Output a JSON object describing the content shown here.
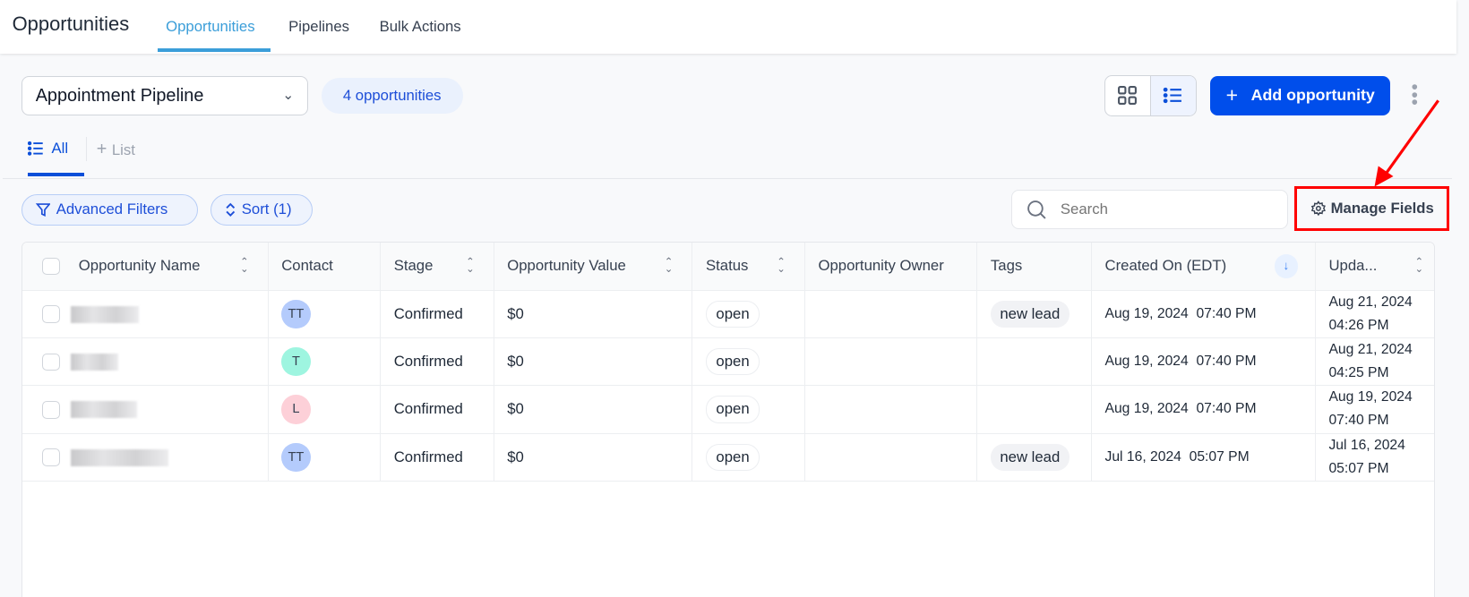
{
  "header": {
    "title": "Opportunities",
    "tabs": [
      {
        "label": "Opportunities",
        "active": true
      },
      {
        "label": "Pipelines"
      },
      {
        "label": "Bulk Actions"
      }
    ]
  },
  "toolbar": {
    "pipeline": "Appointment Pipeline",
    "count": "4 opportunities",
    "add_label": "Add opportunity",
    "view": "list"
  },
  "views": {
    "all": "All",
    "add_list": "List"
  },
  "filters": {
    "advanced": "Advanced Filters",
    "sort": "Sort (1)",
    "search_placeholder": "Search",
    "manage_fields": "Manage Fields"
  },
  "colors": {
    "accent": "#004eeb",
    "highlight_box": "#ff0000",
    "header_tab": "#3b9ed9"
  },
  "table": {
    "columns": [
      "Opportunity Name",
      "Contact",
      "Stage",
      "Opportunity Value",
      "Status",
      "Opportunity Owner",
      "Tags",
      "Created On (EDT)",
      "Upda..."
    ],
    "rows": [
      {
        "contact": "TT",
        "contact_color": "#b4cbfc",
        "stage": "Confirmed",
        "value": "$0",
        "status": "open",
        "owner": "",
        "tag": "new lead",
        "created": "Aug 19, 2024  07:40 PM",
        "updated_date": "Aug 21, 2024",
        "updated_time": "04:26 PM"
      },
      {
        "contact": "T",
        "contact_color": "#9ef5e0",
        "stage": "Confirmed",
        "value": "$0",
        "status": "open",
        "owner": "",
        "tag": "",
        "created": "Aug 19, 2024  07:40 PM",
        "updated_date": "Aug 21, 2024",
        "updated_time": "04:25 PM"
      },
      {
        "contact": "L",
        "contact_color": "#fdd0d8",
        "stage": "Confirmed",
        "value": "$0",
        "status": "open",
        "owner": "",
        "tag": "",
        "created": "Aug 19, 2024  07:40 PM",
        "updated_date": "Aug 19, 2024",
        "updated_time": "07:40 PM"
      },
      {
        "contact": "TT",
        "contact_color": "#b4cbfc",
        "stage": "Confirmed",
        "value": "$0",
        "status": "open",
        "owner": "",
        "tag": "new lead",
        "created": "Jul 16, 2024  05:07 PM",
        "updated_date": "Jul 16, 2024",
        "updated_time": "05:07 PM"
      }
    ]
  }
}
